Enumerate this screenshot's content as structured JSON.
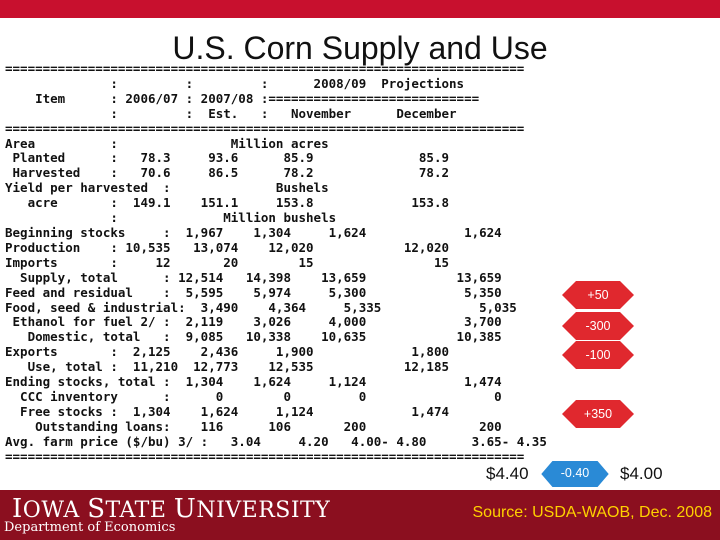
{
  "title": "U.S. Corn Supply and Use",
  "table_text": "=====================================================================\n              :         :         :      2008/09  Projections\n    Item      : 2006/07 : 2007/08 :============================\n              :         :  Est.   :   November      December\n=====================================================================\nArea          :               Million acres\n Planted      :   78.3     93.6      85.9              85.9\n Harvested    :   70.6     86.5      78.2              78.2\nYield per harvested  :              Bushels\n   acre       :  149.1    151.1     153.8             153.8\n              :              Million bushels\nBeginning stocks     :  1,967    1,304     1,624             1,624\nProduction    : 10,535   13,074    12,020            12,020\nImports       :     12       20        15                15\n  Supply, total      : 12,514   14,398    13,659            13,659\nFeed and residual    :  5,595    5,974     5,300             5,350\nFood, seed & industrial:  3,490    4,364     5,335             5,035\n Ethanol for fuel 2/ :  2,119    3,026     4,000             3,700\n   Domestic, total   :  9,085   10,338    10,635            10,385\nExports       :  2,125    2,436     1,900             1,800\n   Use, total :  11,210  12,773    12,535            12,185\nEnding stocks, total :  1,304    1,624     1,124             1,474\n  CCC inventory      :      0        0         0                 0\n  Free stocks :  1,304    1,624     1,124             1,474\n    Outstanding loans:    116      106       200               200\nAvg. farm price ($/bu) 3/ :   3.04     4.20   4.00- 4.80      3.65- 4.35\n=====================================================================",
  "changes": {
    "feed": "+50",
    "food": "-300",
    "exports": "-100",
    "ending": "+350",
    "price": "-0.40"
  },
  "price_left": "$4.40",
  "price_right": "$4.00",
  "footer": {
    "logo_a": "I",
    "logo_b": "OWA ",
    "logo_c": "S",
    "logo_d": "TATE ",
    "logo_e": "U",
    "logo_f": "NIVERSITY",
    "dept": "Department of Economics",
    "source": "Source: USDA-WAOB, Dec. 2008"
  },
  "colors": {
    "accent_red": "#c8102e",
    "footer_red": "#8b0f1f",
    "arrow_red": "#e0282e",
    "pill_blue": "#2a8ad6",
    "source_yellow": "#ffd100"
  }
}
